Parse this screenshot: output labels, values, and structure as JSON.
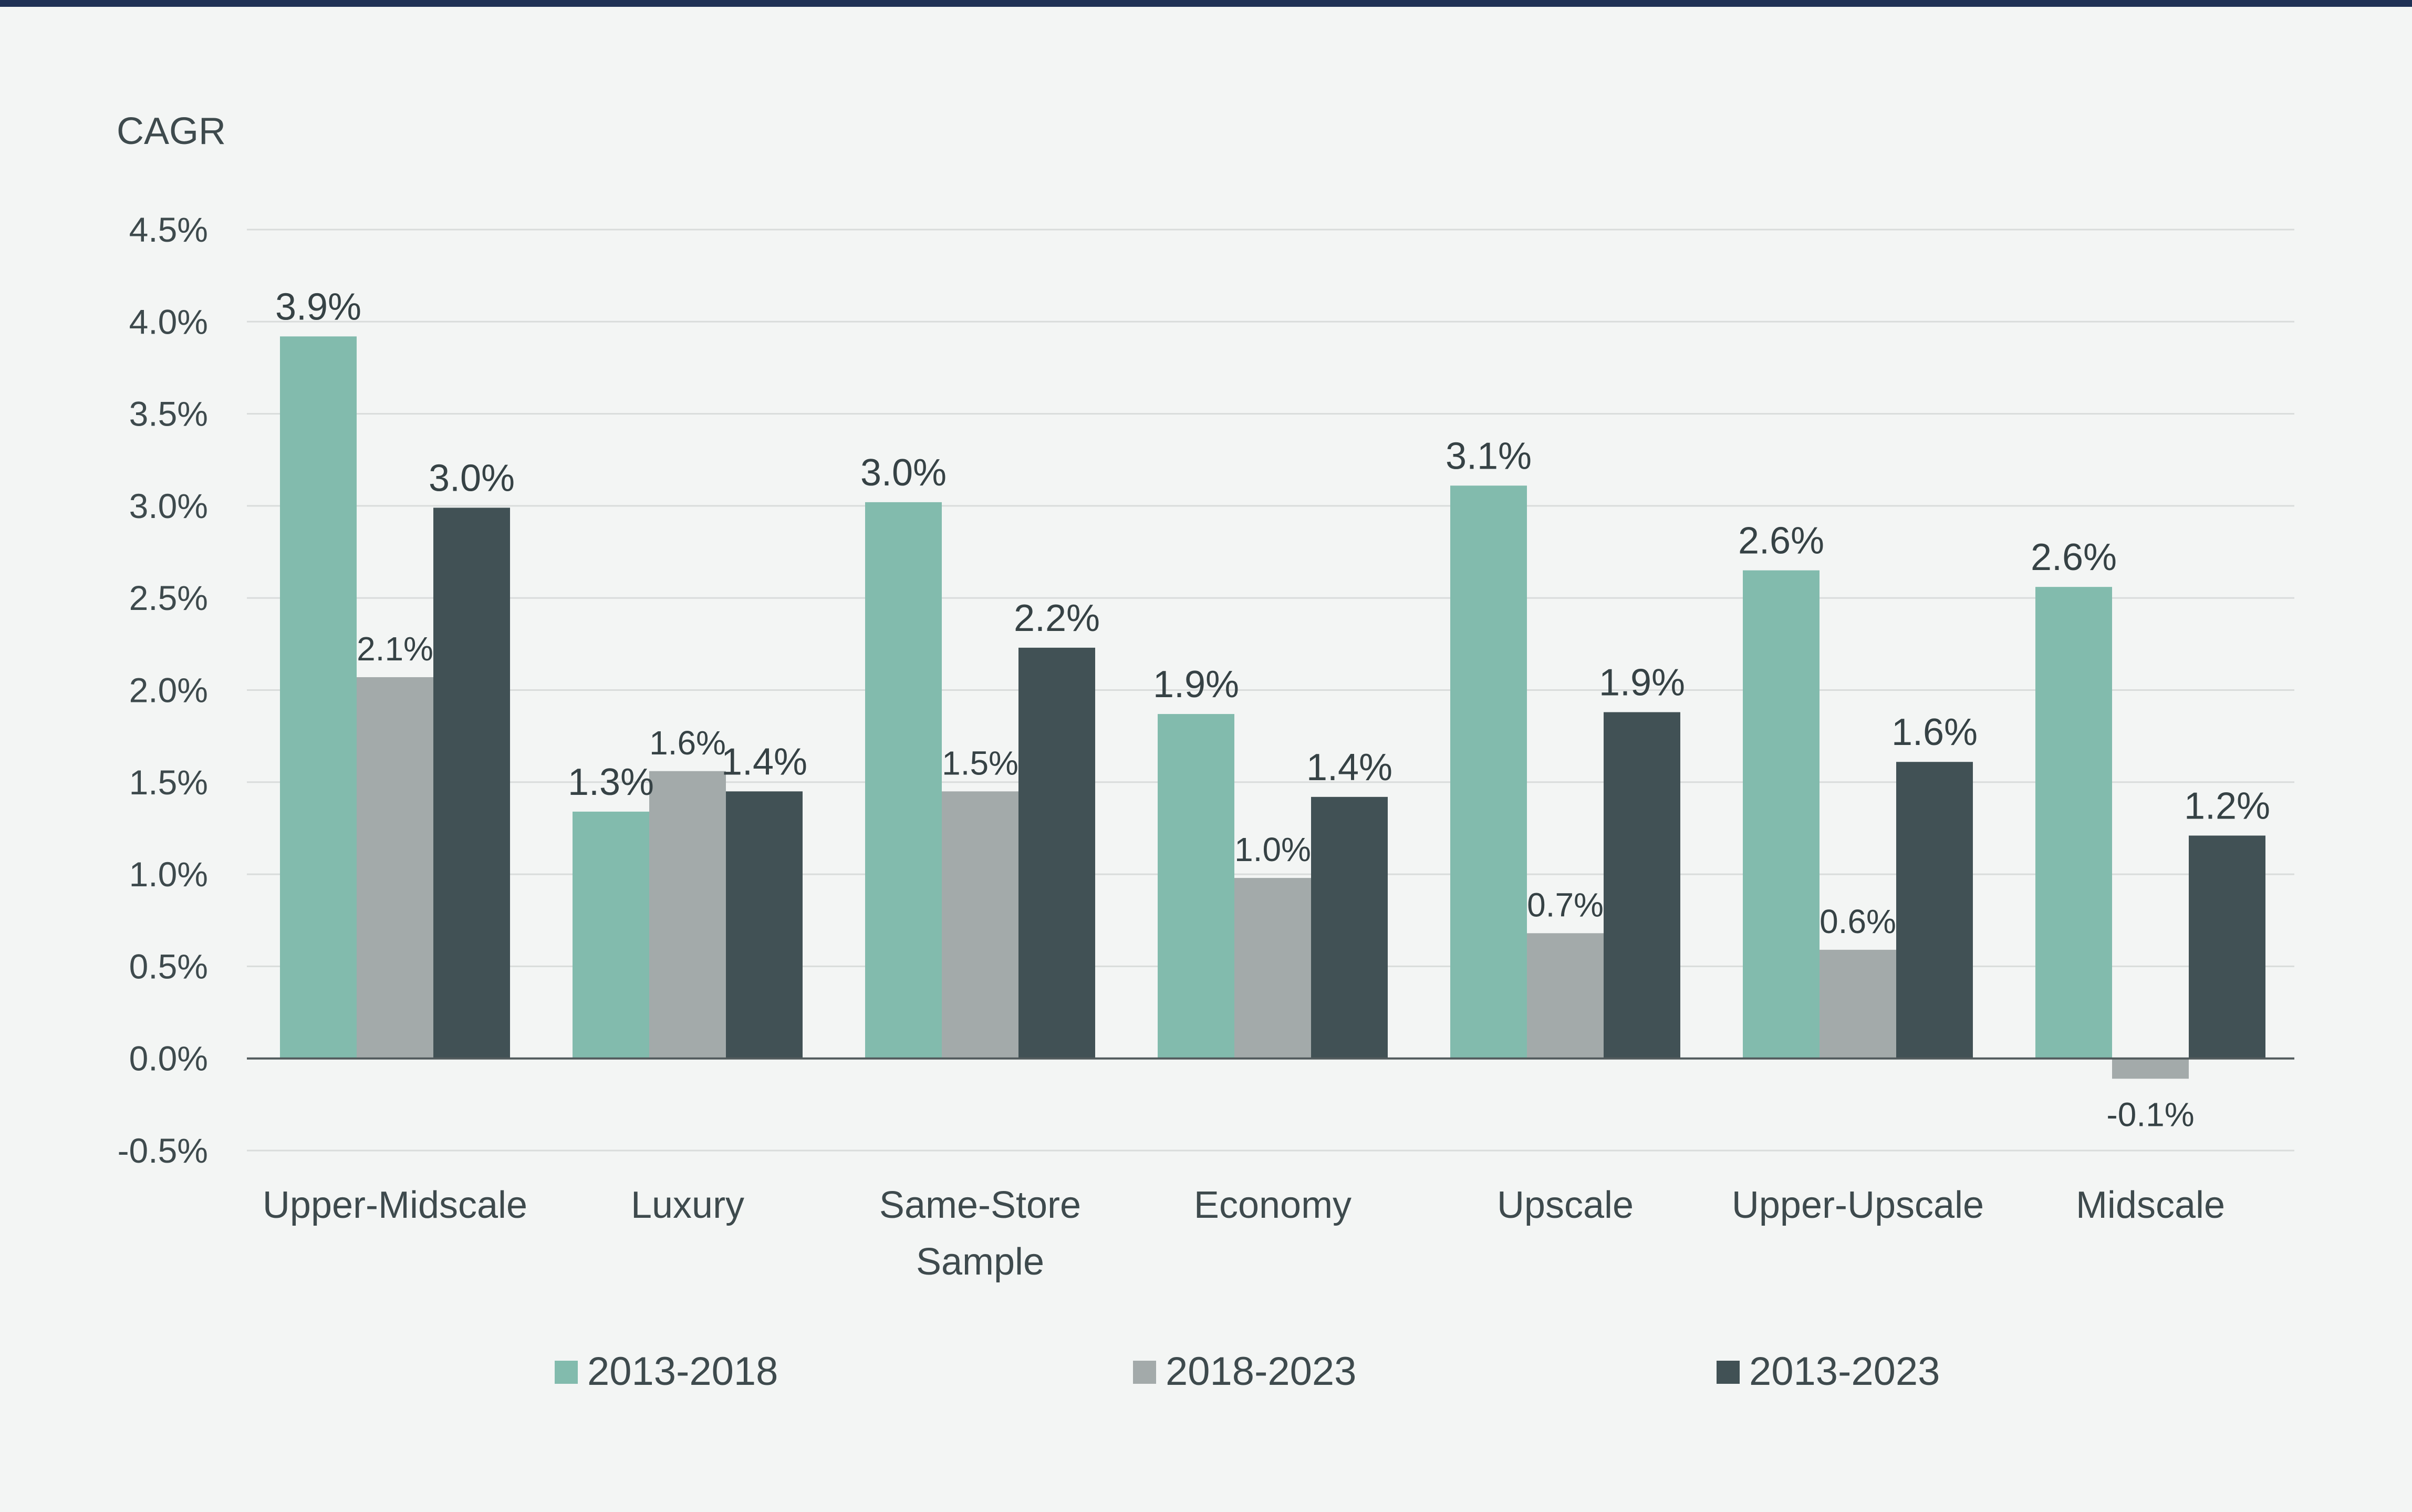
{
  "chart_data": {
    "type": "bar",
    "ylabel": "CAGR",
    "ylim": [
      -0.5,
      4.5
    ],
    "yticks": [
      -0.5,
      0.0,
      0.5,
      1.0,
      1.5,
      2.0,
      2.5,
      3.0,
      3.5,
      4.0,
      4.5
    ],
    "ytick_labels": [
      "-0.5%",
      "0.0%",
      "0.5%",
      "1.0%",
      "1.5%",
      "2.0%",
      "2.5%",
      "3.0%",
      "3.5%",
      "4.0%",
      "4.5%"
    ],
    "grid": true,
    "legend_position": "bottom",
    "categories": [
      [
        "Upper-Midscale"
      ],
      [
        "Luxury"
      ],
      [
        "Same-Store",
        "Sample"
      ],
      [
        "Economy"
      ],
      [
        "Upscale"
      ],
      [
        "Upper-Upscale"
      ],
      [
        "Midscale"
      ]
    ],
    "series": [
      {
        "name": "2013-2018",
        "color": "#82bbad",
        "values": [
          3.92,
          1.34,
          3.02,
          1.87,
          3.11,
          2.65,
          2.56
        ],
        "labels": [
          "3.9%",
          "1.3%",
          "3.0%",
          "1.9%",
          "3.1%",
          "2.6%",
          "2.6%"
        ]
      },
      {
        "name": "2018-2023",
        "color": "#a3aaaa",
        "values": [
          2.07,
          1.56,
          1.45,
          0.98,
          0.68,
          0.59,
          -0.11
        ],
        "labels": [
          "2.1%",
          "1.6%",
          "1.5%",
          "1.0%",
          "0.7%",
          "0.6%",
          "-0.1%"
        ]
      },
      {
        "name": "2013-2023",
        "color": "#415155",
        "values": [
          2.99,
          1.45,
          2.23,
          1.42,
          1.88,
          1.61,
          1.21
        ],
        "labels": [
          "3.0%",
          "1.4%",
          "2.2%",
          "1.4%",
          "1.9%",
          "1.6%",
          "1.2%"
        ]
      }
    ]
  },
  "colors": {
    "grid": "#d9dcdb",
    "axis": "#525b5d",
    "top_rule": "#1f3155"
  }
}
